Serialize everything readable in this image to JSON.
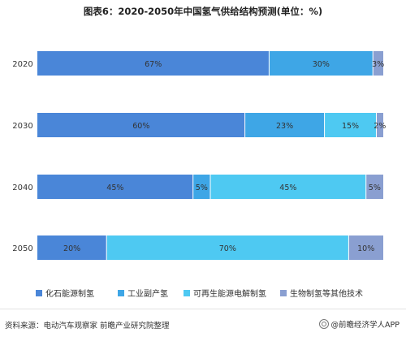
{
  "chart_data": {
    "type": "bar",
    "orientation": "horizontal",
    "stacked": true,
    "normalized_percent": true,
    "title": "图表6：2020-2050年中国氢气供给结构预测(单位：%)",
    "categories": [
      "2020",
      "2030",
      "2040",
      "2050"
    ],
    "series": [
      {
        "name": "化石能源制氢",
        "color": "#4a86d8",
        "values": [
          67,
          60,
          45,
          20
        ],
        "labels": [
          "67%",
          "60%",
          "45%",
          "20%"
        ]
      },
      {
        "name": "工业副产氢",
        "color": "#3ea6e6",
        "values": [
          30,
          23,
          5,
          0
        ],
        "labels": [
          "30%",
          "23%",
          "5%",
          ""
        ]
      },
      {
        "name": "可再生能源电解制氢",
        "color": "#4ec9f2",
        "values": [
          0,
          15,
          45,
          70
        ],
        "labels": [
          "",
          "15%",
          "45%",
          "70%"
        ]
      },
      {
        "name": "生物制氢等其他技术",
        "color": "#8a9fd1",
        "values": [
          3,
          2,
          5,
          10
        ],
        "labels": [
          "3%",
          "2%",
          "5%",
          "10%"
        ]
      }
    ],
    "legend_position": "bottom",
    "grid": false
  },
  "footer": {
    "source": "资料来源：电动汽车观察家 前瞻产业研究院整理",
    "brand": "@前瞻经济学人APP"
  }
}
